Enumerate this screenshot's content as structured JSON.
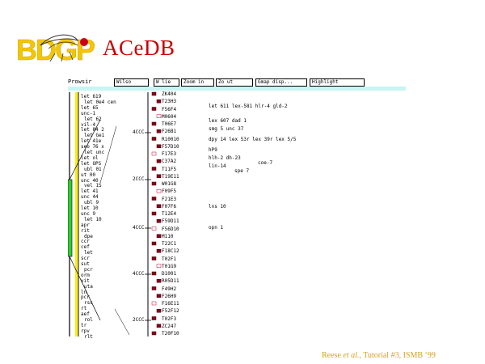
{
  "header": {
    "logo_text": "BDGP",
    "title": "ACeDB"
  },
  "toolbar": {
    "label": "Prowsir",
    "buttons": [
      "Wilso",
      "W lie",
      "Zoom in",
      "Zo ut",
      "Gmap disp...",
      "Highlight"
    ]
  },
  "map": {
    "gene_labels": [
      "let 619",
      "let 0e4 cen",
      "let 65",
      "unc-1",
      "let 62",
      "vil-4",
      "let 84 2",
      "let Ge1",
      "let 41e",
      "seo 76 x",
      "let unc",
      "let ol",
      "let OPS",
      "ubl 01",
      "ut 00",
      "unc 40",
      "vel 1S",
      "let 41",
      "unc 44",
      "ubl 9",
      "let 10",
      "unc 9",
      "let 10",
      "apr",
      "rit",
      "dpe",
      "ccr",
      "cef",
      "let",
      "scr",
      "sut",
      "pcr",
      "orm",
      "vit",
      "uta",
      "ln",
      "pcr",
      "rsc",
      "rt",
      "aef",
      "rol",
      "tr",
      "rpv",
      "rlt"
    ],
    "tick_labels": [
      "4CCC",
      "2CCC",
      "4CCC",
      "4CCC",
      "2CCC"
    ],
    "clone_names": [
      "ZK404",
      "T23H3",
      "F56F4",
      "M0604",
      "T06E7",
      "F26B1",
      "R10010",
      "F57D10",
      "F17E3",
      "C37A2",
      "T11F5",
      "T19E11",
      "W01G8",
      "F09F5",
      "F21E3",
      "F07F6",
      "T12E4",
      "F59D11",
      "F56D10",
      "M110",
      "T22C1",
      "F18C12",
      "T02F1",
      "T01G9",
      "D1001",
      "R05D11",
      "F49H2",
      "F26H9",
      "F16E11",
      "F52F12",
      "T02F3",
      "ZC247",
      "T20F10"
    ],
    "annotations": [
      "let 611 lex-581 hlr-4 gld-2",
      "lex 607 dad 1",
      "smg 5 unc 37",
      "dpy 14 lex 53r lex 39r lex 5/5",
      "hP9",
      "hlh-2 dh-23",
      "lin-14",
      "coe-7",
      "spe 7",
      "lns 10",
      "opn 1"
    ],
    "colors": {
      "accent_red": "#cc0000",
      "locator_green": "#33cc33",
      "chrom_yellow": "#ffee00",
      "toolbar_cyan": "#c8f4f4"
    }
  },
  "footer": {
    "author": "Reese",
    "etal": "et al.",
    "rest": ", Tutorial #3, ISMB ‘99"
  }
}
